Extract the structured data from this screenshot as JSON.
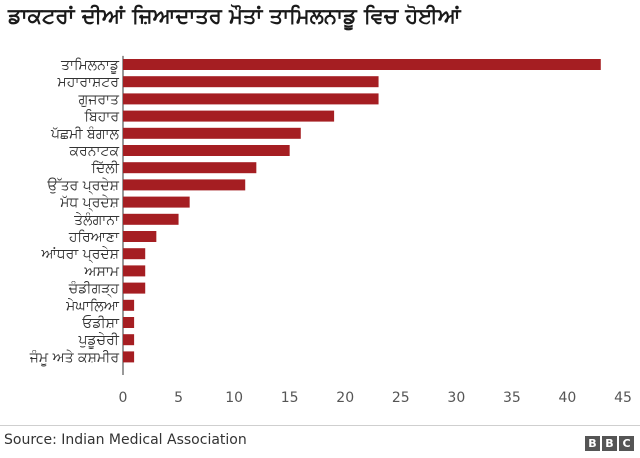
{
  "chart_data": {
    "type": "bar",
    "orientation": "horizontal",
    "title": "ਡਾਕਟਰਾਂ ਦੀਆਂ ਜ਼ਿਆਦਾਤਰ ਮੌਤਾਂ ਤਾਮਿਲਨਾਡੂ ਵਿਚ ਹੋਈਆਂ",
    "categories": [
      "ਤਾਮਿਲਨਾਡੂ",
      "ਮਹਾਰਾਸ਼ਟਰ",
      "ਗੁਜਰਾਤ",
      "ਬਿਹਾਰ",
      "ਪੱਛਮੀ ਬੰਗਾਲ",
      "ਕਰਨਾਟਕ",
      "ਦਿੱਲੀ",
      "ਉੱਤਰ ਪ੍ਰਦੇਸ਼",
      "ਮੱਧ ਪ੍ਰਦੇਸ਼",
      "ਤੇਲੰਗਾਨਾ",
      "ਹਰਿਆਣਾ",
      "ਆਂਧਰਾ ਪ੍ਰਦੇਸ਼",
      "ਅਸਾਮ",
      "ਚੰਡੀਗੜ੍ਹ",
      "ਮੇਘਾਲਿਆ",
      "ਓਡੀਸ਼ਾ",
      "ਪੁਡੂਚੇਰੀ",
      "ਜੰਮੂ ਅਤੇ ਕਸ਼ਮੀਰ"
    ],
    "values": [
      43,
      23,
      23,
      19,
      16,
      15,
      12,
      11,
      6,
      5,
      3,
      2,
      2,
      2,
      1,
      1,
      1,
      1
    ],
    "xlim": [
      0,
      45
    ],
    "xticks": [
      0,
      5,
      10,
      15,
      20,
      25,
      30,
      35,
      40,
      45
    ],
    "grid": false,
    "bar_color": "#a51e22"
  },
  "footer": {
    "source": "Source: Indian Medical Association",
    "logo_letters": [
      "B",
      "B",
      "C"
    ]
  }
}
